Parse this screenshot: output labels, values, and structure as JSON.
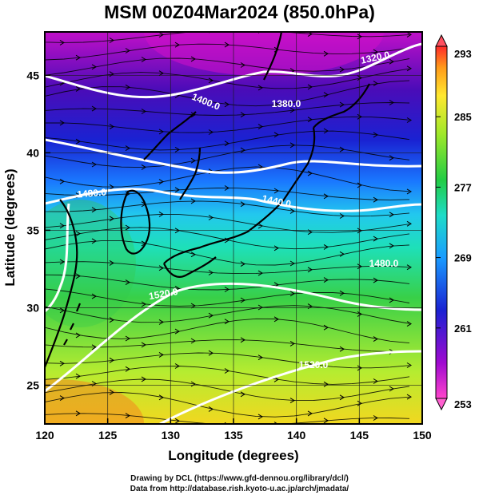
{
  "title": "MSM 00Z04Mar2024 (850.0hPa)",
  "map": {
    "xlabel": "Longitude (degrees)",
    "ylabel": "Latitude  (degrees)",
    "xlim": [
      120,
      150
    ],
    "ylim": [
      22.5,
      47.8
    ],
    "xticks": [
      120,
      125,
      130,
      135,
      140,
      145,
      150
    ],
    "yticks": [
      25,
      30,
      35,
      40,
      45
    ],
    "gridlines": true
  },
  "colorbar": {
    "ticks": [
      293,
      285,
      277,
      269,
      261,
      253
    ],
    "min": 253,
    "max": 293,
    "colors": [
      "#ff2a2a",
      "#ff9a1a",
      "#ffe830",
      "#b4ec2a",
      "#22cc44",
      "#1edca0",
      "#22d0ee",
      "#1a78ff",
      "#1a22d2",
      "#5a0ab4",
      "#b40ac8",
      "#ff44cc"
    ]
  },
  "contours": {
    "labels": [
      "1320.0",
      "1380.0",
      "1400.0",
      "1440.0",
      "1480.0",
      "1480.0",
      "1520.0",
      "1520.0"
    ]
  },
  "credits": {
    "line1": "Drawing by DCL (https://www.gfd-dennou.org/library/dcl/)",
    "line2": "Data from http://database.rish.kyoto-u.ac.jp/arch/jmadata/"
  }
}
